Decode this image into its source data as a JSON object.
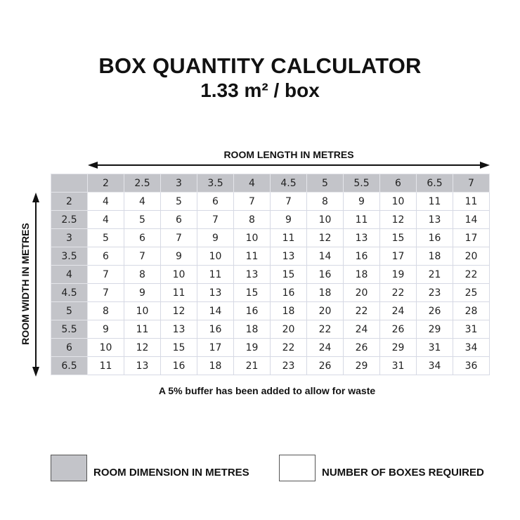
{
  "title": "BOX QUANTITY CALCULATOR",
  "subtitle": "1.33 m² / box",
  "length_axis_label": "ROOM LENGTH IN METRES",
  "width_axis_label": "ROOM WIDTH IN METRES",
  "table": {
    "lengths": [
      "2",
      "2.5",
      "3",
      "3.5",
      "4",
      "4.5",
      "5",
      "5.5",
      "6",
      "6.5",
      "7"
    ],
    "rows": [
      {
        "width": "2",
        "boxes": [
          "4",
          "4",
          "5",
          "6",
          "7",
          "7",
          "8",
          "9",
          "10",
          "11",
          "11"
        ]
      },
      {
        "width": "2.5",
        "boxes": [
          "4",
          "5",
          "6",
          "7",
          "8",
          "9",
          "10",
          "11",
          "12",
          "13",
          "14"
        ]
      },
      {
        "width": "3",
        "boxes": [
          "5",
          "6",
          "7",
          "9",
          "10",
          "11",
          "12",
          "13",
          "15",
          "16",
          "17"
        ]
      },
      {
        "width": "3.5",
        "boxes": [
          "6",
          "7",
          "9",
          "10",
          "11",
          "13",
          "14",
          "16",
          "17",
          "18",
          "20"
        ]
      },
      {
        "width": "4",
        "boxes": [
          "7",
          "8",
          "10",
          "11",
          "13",
          "15",
          "16",
          "18",
          "19",
          "21",
          "22"
        ]
      },
      {
        "width": "4.5",
        "boxes": [
          "7",
          "9",
          "11",
          "13",
          "15",
          "16",
          "18",
          "20",
          "22",
          "23",
          "25"
        ]
      },
      {
        "width": "5",
        "boxes": [
          "8",
          "10",
          "12",
          "14",
          "16",
          "18",
          "20",
          "22",
          "24",
          "26",
          "28"
        ]
      },
      {
        "width": "5.5",
        "boxes": [
          "9",
          "11",
          "13",
          "16",
          "18",
          "20",
          "22",
          "24",
          "26",
          "29",
          "31"
        ]
      },
      {
        "width": "6",
        "boxes": [
          "10",
          "12",
          "15",
          "17",
          "19",
          "22",
          "24",
          "26",
          "29",
          "31",
          "34"
        ]
      },
      {
        "width": "6.5",
        "boxes": [
          "11",
          "13",
          "16",
          "18",
          "21",
          "23",
          "26",
          "29",
          "31",
          "34",
          "36"
        ]
      }
    ]
  },
  "footnote": "A 5% buffer has been added to allow for waste",
  "legend": [
    {
      "label": "ROOM DIMENSION IN METRES",
      "color": "#c3c4c9"
    },
    {
      "label": "NUMBER OF BOXES REQUIRED",
      "color": "#ffffff"
    }
  ]
}
